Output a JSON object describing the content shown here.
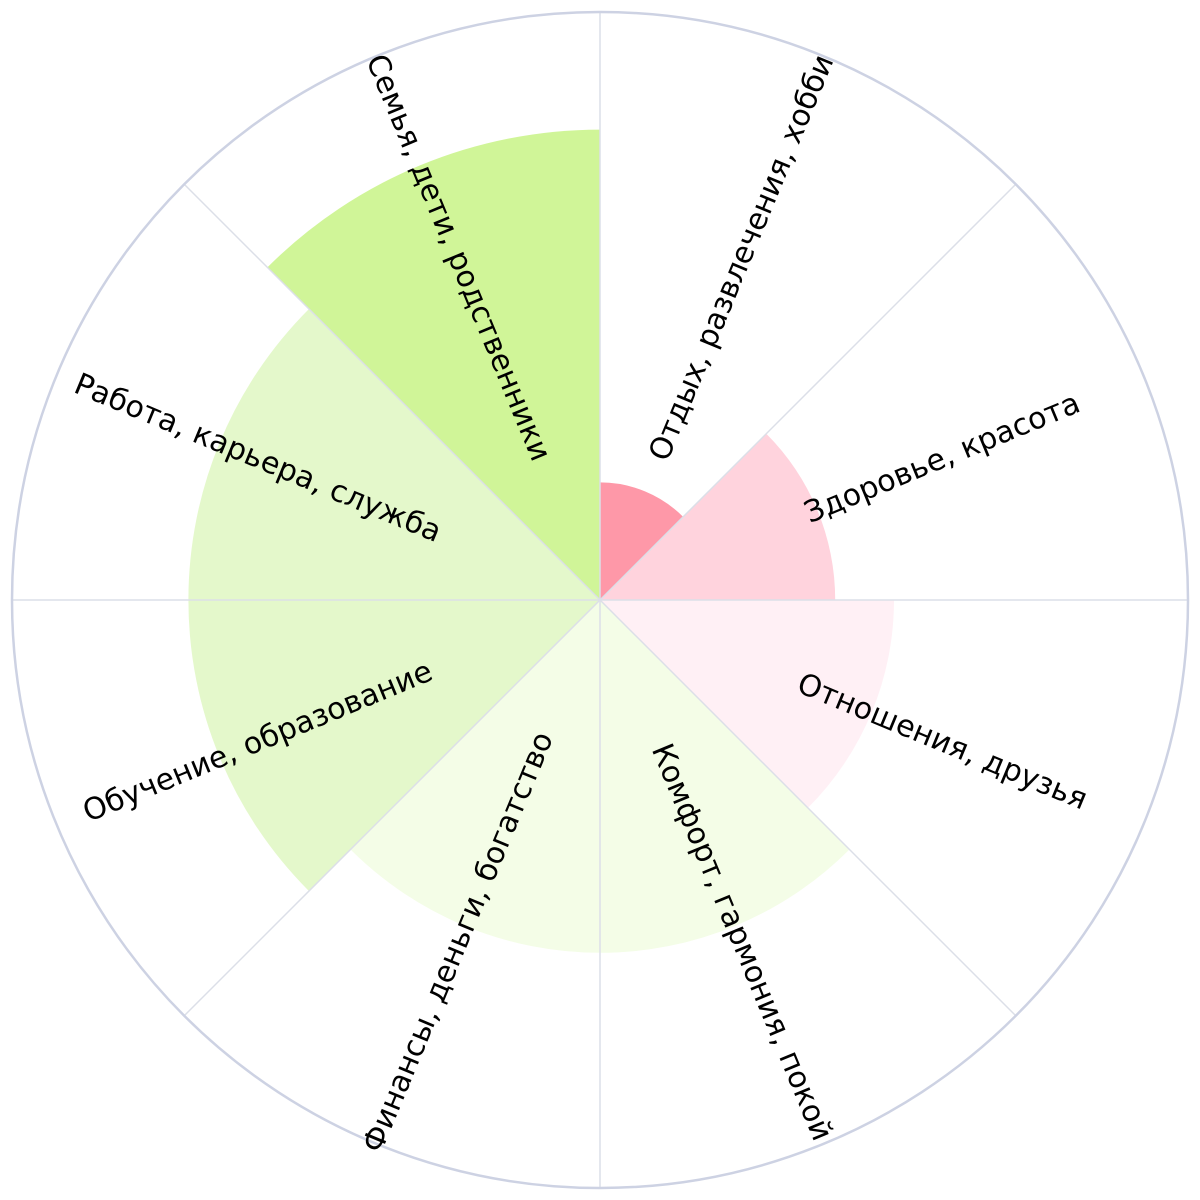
{
  "chart_data": {
    "type": "polar-area",
    "title": "",
    "max_value": 10,
    "grid": true,
    "categories": [
      "Отдых, развлечения, хобби",
      "Здоровье, красота",
      "Отношения, друзья",
      "Комфорт, гармония, покой",
      "Финансы, деньги, богатство",
      "Обучение, образование",
      "Работа, карьера, служба",
      "Семья, дети, родственники"
    ],
    "values": [
      2,
      4,
      5,
      6,
      6,
      7,
      7,
      8
    ],
    "colors": [
      "#fe98a8",
      "#ffd3dd",
      "#fff0f5",
      "#f4fde7",
      "#f4fde7",
      "#e4f8cb",
      "#e4f8cb",
      "#d0f598"
    ]
  }
}
